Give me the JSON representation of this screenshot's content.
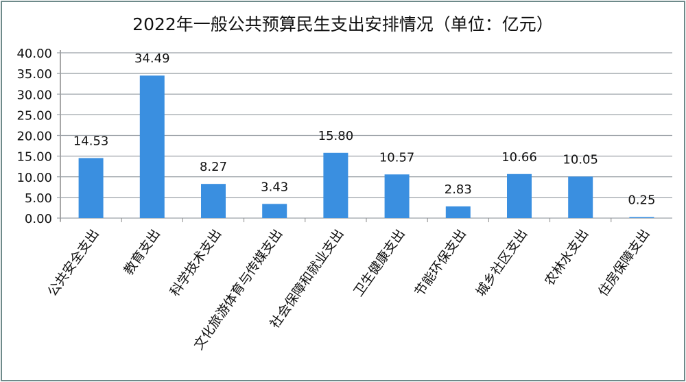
{
  "chart_data": {
    "type": "bar",
    "title": "2022年一般公共预算民生支出安排情况（单位：亿元）",
    "categories": [
      "公共安全支出",
      "教育支出",
      "科学技术支出",
      "文化旅游体育与传媒支出",
      "社会保障和就业支出",
      "卫生健康支出",
      "节能环保支出",
      "城乡社区支出",
      "农林水支出",
      "住房保障支出"
    ],
    "values": [
      14.53,
      34.49,
      8.27,
      3.43,
      15.8,
      10.57,
      2.83,
      10.66,
      10.05,
      0.25
    ],
    "data_labels": [
      "14.53",
      "34.49",
      "8.27",
      "3.43",
      "15.80",
      "10.57",
      "2.83",
      "10.66",
      "10.05",
      "0.25"
    ],
    "ylim": [
      0,
      40
    ],
    "yticks": [
      "0.00",
      "5.00",
      "10.00",
      "15.00",
      "20.00",
      "25.00",
      "30.00",
      "35.00",
      "40.00"
    ],
    "grid": true,
    "xlabel": "",
    "ylabel": "",
    "bar_color": "#3a8fe0"
  }
}
